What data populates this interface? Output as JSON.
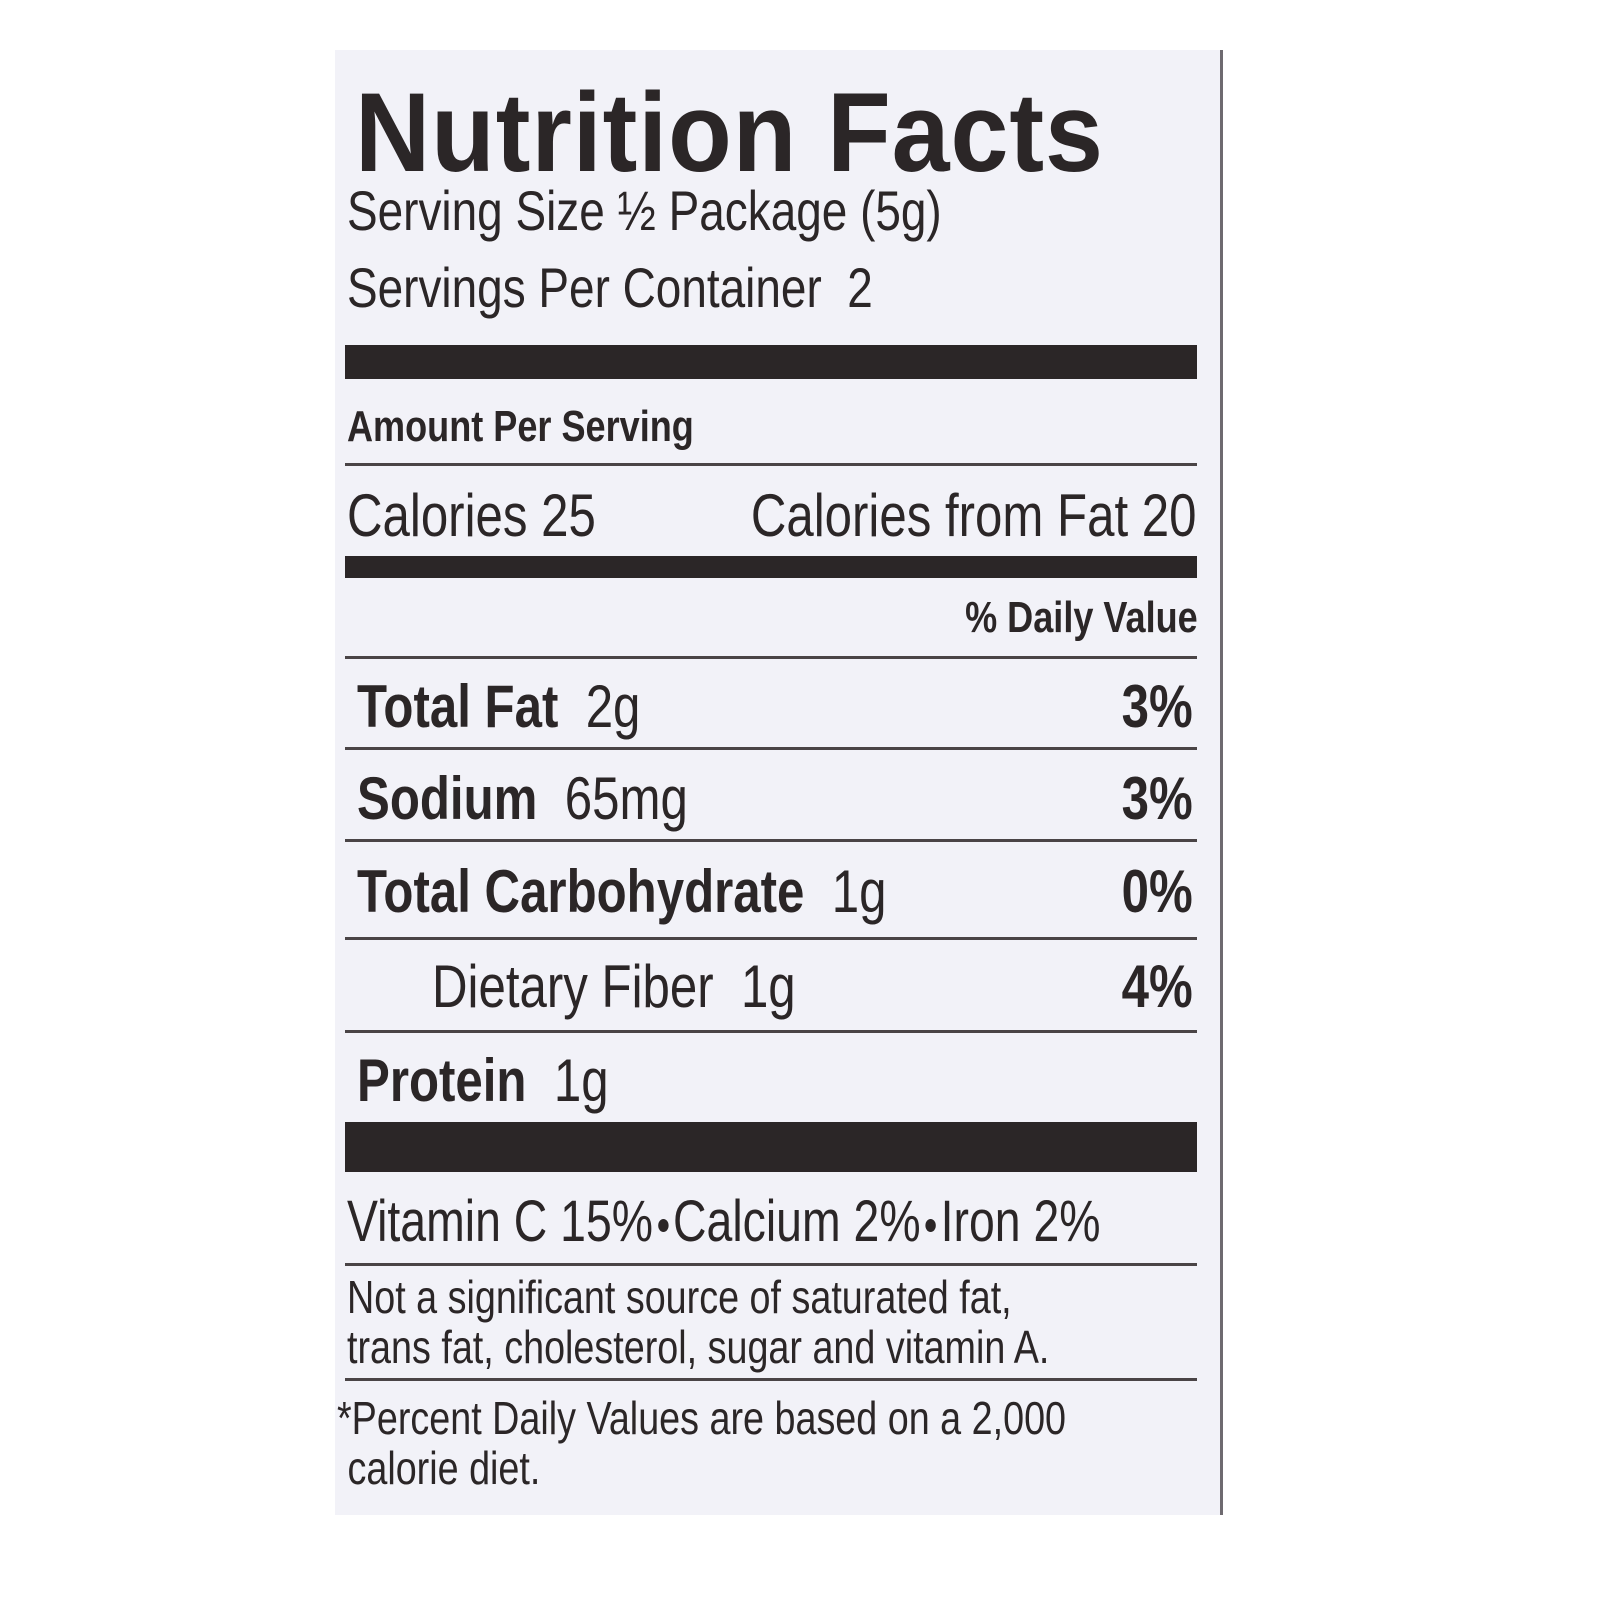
{
  "title": "Nutrition Facts",
  "serving_size": {
    "label": "Serving Size",
    "value": "½ Package (5g)"
  },
  "servings_per_container": {
    "label": "Servings Per Container",
    "value": "2"
  },
  "amount_per_serving": "Amount Per Serving",
  "calories": {
    "label": "Calories",
    "value": "25"
  },
  "calories_from_fat": {
    "label": "Calories from Fat",
    "value": "20"
  },
  "daily_value_header": "% Daily Value",
  "nutrients": [
    {
      "name": "Total Fat",
      "amount": "2g",
      "daily_value": "3%"
    },
    {
      "name": "Sodium",
      "amount": "65mg",
      "daily_value": "3%"
    },
    {
      "name": "Total Carbohydrate",
      "amount": "1g",
      "daily_value": "0%"
    },
    {
      "name": "Dietary Fiber",
      "amount": "1g",
      "daily_value": "4%"
    },
    {
      "name": "Protein",
      "amount": "1g"
    }
  ],
  "vitamins": [
    "Vitamin C 15%",
    "Calcium 2%",
    "Iron 2%"
  ],
  "note": [
    "Not a significant source of saturated fat,",
    "trans fat, cholesterol, sugar and vitamin A."
  ],
  "footnote": [
    "*Percent Daily Values are based on a 2,000",
    "calorie diet."
  ]
}
